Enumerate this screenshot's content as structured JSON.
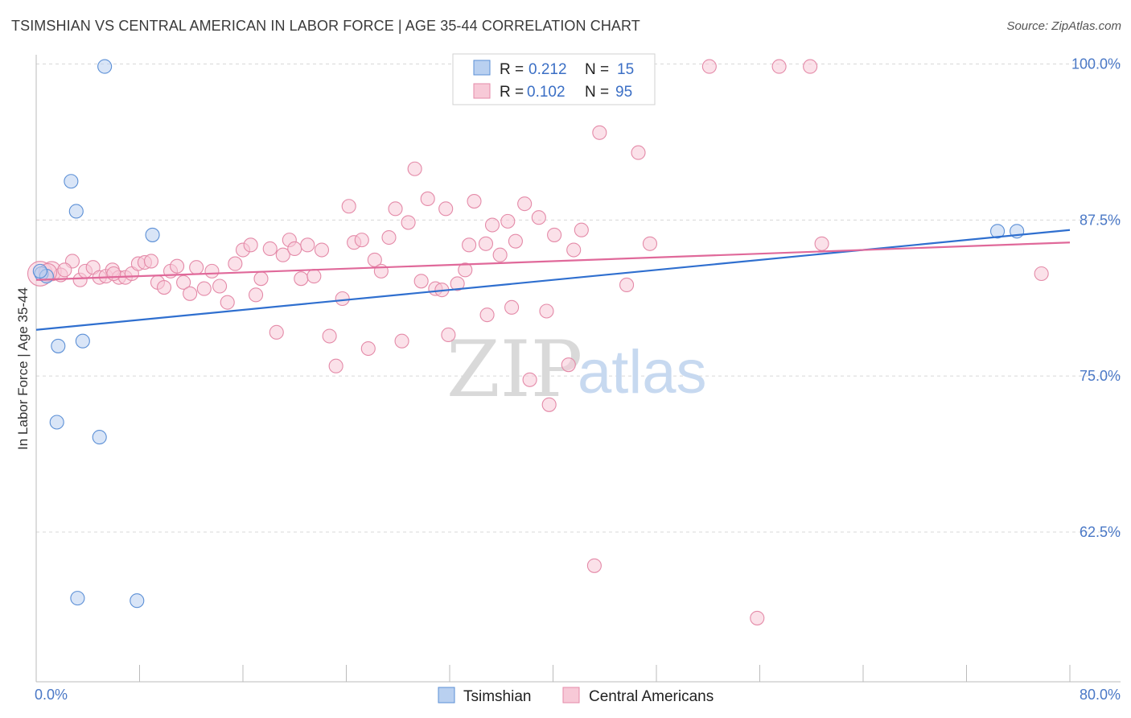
{
  "title": "TSIMSHIAN VS CENTRAL AMERICAN IN LABOR FORCE | AGE 35-44 CORRELATION CHART",
  "source": "Source: ZipAtlas.com",
  "watermark": {
    "zip": "ZIP",
    "atlas": "atlas"
  },
  "colors": {
    "blue": "#5b8fd6",
    "blue_fill": "#b9d0f0",
    "blue_line": "#2f6fcf",
    "pink": "#e48aa8",
    "pink_fill": "#f7c9d7",
    "pink_line": "#e0699a",
    "axis_text": "#4a78c6",
    "grid": "#d8d8d8"
  },
  "legend": {
    "r_label": "R =",
    "n_label": "N =",
    "rows": [
      {
        "r": "0.212",
        "n": "15"
      },
      {
        "r": "0.102",
        "n": "95"
      }
    ]
  },
  "chart_data": {
    "type": "scatter",
    "title": "TSIMSHIAN VS CENTRAL AMERICAN IN LABOR FORCE | AGE 35-44 CORRELATION CHART",
    "xlabel": "",
    "ylabel": "In Labor Force | Age 35-44",
    "xlim": [
      0,
      80
    ],
    "ylim": [
      50.5,
      101
    ],
    "x_tick_labels": [
      "0.0%",
      "80.0%"
    ],
    "y_ticks": [
      62.5,
      75.0,
      87.5,
      100.0
    ],
    "y_tick_labels": [
      "62.5%",
      "75.0%",
      "87.5%",
      "100.0%"
    ],
    "grid": true,
    "series": [
      {
        "name": "Tsimshian",
        "trend": {
          "x": [
            0,
            80
          ],
          "y": [
            78.7,
            86.7
          ]
        },
        "points": [
          {
            "x": 0.4,
            "y": 83.2
          },
          {
            "x": 0.8,
            "y": 83.0
          },
          {
            "x": 5.3,
            "y": 99.8
          },
          {
            "x": 2.7,
            "y": 90.6
          },
          {
            "x": 3.1,
            "y": 88.2
          },
          {
            "x": 9.0,
            "y": 86.3
          },
          {
            "x": 1.7,
            "y": 77.4
          },
          {
            "x": 3.6,
            "y": 77.8
          },
          {
            "x": 1.6,
            "y": 71.3
          },
          {
            "x": 4.9,
            "y": 70.1
          },
          {
            "x": 3.2,
            "y": 57.2
          },
          {
            "x": 7.8,
            "y": 57.0
          },
          {
            "x": 74.4,
            "y": 86.6
          },
          {
            "x": 75.9,
            "y": 86.6
          },
          {
            "x": 0.3,
            "y": 83.4
          }
        ]
      },
      {
        "name": "Central Americans",
        "trend": {
          "x": [
            0,
            80
          ],
          "y": [
            82.7,
            85.7
          ]
        },
        "points": [
          {
            "x": 0.3,
            "y": 83.2,
            "s": 1.8
          },
          {
            "x": 1.2,
            "y": 83.4,
            "s": 1.4
          },
          {
            "x": 1.9,
            "y": 83.1
          },
          {
            "x": 2.8,
            "y": 84.2
          },
          {
            "x": 3.4,
            "y": 82.7
          },
          {
            "x": 3.8,
            "y": 83.4
          },
          {
            "x": 4.4,
            "y": 83.7
          },
          {
            "x": 4.9,
            "y": 82.9
          },
          {
            "x": 5.4,
            "y": 83.0
          },
          {
            "x": 5.9,
            "y": 83.5
          },
          {
            "x": 6.4,
            "y": 82.9
          },
          {
            "x": 6.9,
            "y": 82.9
          },
          {
            "x": 7.4,
            "y": 83.2
          },
          {
            "x": 7.9,
            "y": 84.0
          },
          {
            "x": 8.4,
            "y": 84.1
          },
          {
            "x": 8.9,
            "y": 84.2
          },
          {
            "x": 9.4,
            "y": 82.5
          },
          {
            "x": 9.9,
            "y": 82.1
          },
          {
            "x": 10.4,
            "y": 83.4
          },
          {
            "x": 10.9,
            "y": 83.8
          },
          {
            "x": 11.4,
            "y": 82.5
          },
          {
            "x": 11.9,
            "y": 81.6
          },
          {
            "x": 12.4,
            "y": 83.7
          },
          {
            "x": 13.0,
            "y": 82.0
          },
          {
            "x": 13.6,
            "y": 83.4
          },
          {
            "x": 14.2,
            "y": 82.2
          },
          {
            "x": 14.8,
            "y": 80.9
          },
          {
            "x": 15.4,
            "y": 84.0
          },
          {
            "x": 16.0,
            "y": 85.1
          },
          {
            "x": 16.6,
            "y": 85.5
          },
          {
            "x": 17.0,
            "y": 81.5
          },
          {
            "x": 17.4,
            "y": 82.8
          },
          {
            "x": 18.1,
            "y": 85.2
          },
          {
            "x": 18.6,
            "y": 78.5
          },
          {
            "x": 19.1,
            "y": 84.7
          },
          {
            "x": 19.6,
            "y": 85.9
          },
          {
            "x": 20.0,
            "y": 85.2
          },
          {
            "x": 20.5,
            "y": 82.8
          },
          {
            "x": 21.0,
            "y": 85.5
          },
          {
            "x": 21.5,
            "y": 83.0
          },
          {
            "x": 22.1,
            "y": 85.1
          },
          {
            "x": 22.7,
            "y": 78.2
          },
          {
            "x": 23.2,
            "y": 75.8
          },
          {
            "x": 23.7,
            "y": 81.2
          },
          {
            "x": 24.2,
            "y": 88.6
          },
          {
            "x": 24.6,
            "y": 85.7
          },
          {
            "x": 25.2,
            "y": 85.9
          },
          {
            "x": 25.7,
            "y": 77.2
          },
          {
            "x": 26.2,
            "y": 84.3
          },
          {
            "x": 26.7,
            "y": 83.4
          },
          {
            "x": 27.3,
            "y": 86.1
          },
          {
            "x": 27.8,
            "y": 88.4
          },
          {
            "x": 28.3,
            "y": 77.8
          },
          {
            "x": 28.8,
            "y": 87.3
          },
          {
            "x": 29.3,
            "y": 91.6
          },
          {
            "x": 29.8,
            "y": 82.6
          },
          {
            "x": 30.3,
            "y": 89.2
          },
          {
            "x": 30.9,
            "y": 82.0
          },
          {
            "x": 31.4,
            "y": 81.9
          },
          {
            "x": 31.7,
            "y": 88.4
          },
          {
            "x": 31.9,
            "y": 78.3
          },
          {
            "x": 32.6,
            "y": 82.4
          },
          {
            "x": 33.2,
            "y": 83.5
          },
          {
            "x": 33.5,
            "y": 85.5
          },
          {
            "x": 33.9,
            "y": 89.0
          },
          {
            "x": 34.8,
            "y": 85.6
          },
          {
            "x": 34.9,
            "y": 79.9
          },
          {
            "x": 35.3,
            "y": 87.1
          },
          {
            "x": 35.9,
            "y": 84.7
          },
          {
            "x": 36.5,
            "y": 87.4
          },
          {
            "x": 36.8,
            "y": 80.5
          },
          {
            "x": 37.1,
            "y": 85.8
          },
          {
            "x": 37.8,
            "y": 88.8
          },
          {
            "x": 38.2,
            "y": 74.7
          },
          {
            "x": 38.9,
            "y": 87.7
          },
          {
            "x": 39.5,
            "y": 80.2
          },
          {
            "x": 39.7,
            "y": 72.7
          },
          {
            "x": 40.1,
            "y": 86.3
          },
          {
            "x": 41.2,
            "y": 75.9
          },
          {
            "x": 41.6,
            "y": 85.1
          },
          {
            "x": 42.2,
            "y": 86.7
          },
          {
            "x": 43.2,
            "y": 59.8
          },
          {
            "x": 43.6,
            "y": 94.5
          },
          {
            "x": 45.7,
            "y": 82.3
          },
          {
            "x": 46.6,
            "y": 92.9
          },
          {
            "x": 47.5,
            "y": 85.6
          },
          {
            "x": 52.1,
            "y": 99.8
          },
          {
            "x": 55.8,
            "y": 55.6
          },
          {
            "x": 57.5,
            "y": 99.8
          },
          {
            "x": 59.9,
            "y": 99.8
          },
          {
            "x": 60.8,
            "y": 85.6
          },
          {
            "x": 77.8,
            "y": 83.2
          },
          {
            "x": 0.9,
            "y": 83.3,
            "s": 1.3
          },
          {
            "x": 2.2,
            "y": 83.5
          },
          {
            "x": 6.0,
            "y": 83.2
          }
        ]
      }
    ],
    "legend_entries": [
      "Tsimshian",
      "Central Americans"
    ]
  }
}
